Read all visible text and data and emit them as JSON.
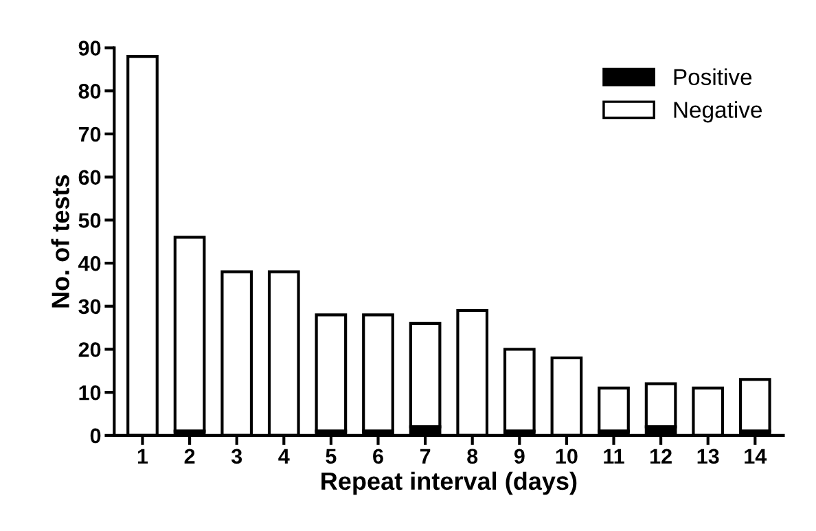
{
  "chart_data": {
    "type": "bar",
    "stacked": true,
    "xlabel": "Repeat interval (days)",
    "ylabel": "No. of tests",
    "categories": [
      "1",
      "2",
      "3",
      "4",
      "5",
      "6",
      "7",
      "8",
      "9",
      "10",
      "11",
      "12",
      "13",
      "14"
    ],
    "series": [
      {
        "name": "Positive",
        "color": "#000000",
        "values": [
          0,
          1,
          0,
          0,
          1,
          1,
          2,
          0,
          1,
          0,
          1,
          2,
          0,
          1
        ]
      },
      {
        "name": "Negative",
        "color": "#ffffff",
        "values": [
          88,
          45,
          38,
          38,
          27,
          27,
          24,
          29,
          19,
          18,
          10,
          10,
          11,
          12
        ]
      }
    ],
    "ylim": [
      0,
      90
    ],
    "yticks": [
      0,
      10,
      20,
      30,
      40,
      50,
      60,
      70,
      80,
      90
    ],
    "grid": false,
    "legend": "top right"
  }
}
